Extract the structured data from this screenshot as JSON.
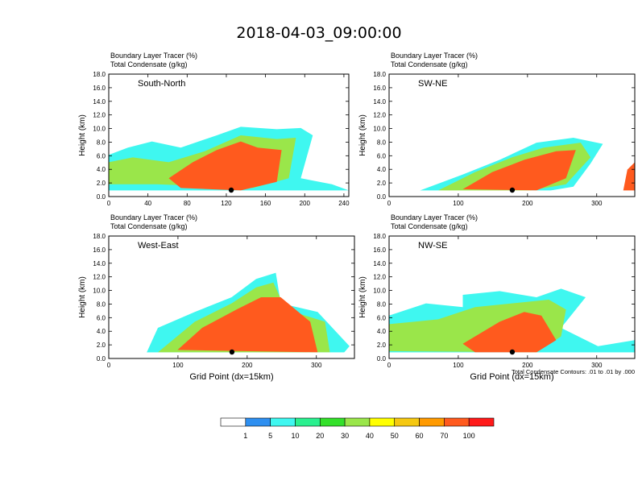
{
  "title": "2018-04-03_09:00:00",
  "footnote": "Total Condensate Contours: .01 to .01 by .000",
  "colorbar": {
    "colors": [
      "#ffffff",
      "#2e8ff0",
      "#3ff7f0",
      "#2af08f",
      "#33e02a",
      "#9ae64a",
      "#ffff00",
      "#f5c811",
      "#ff9a00",
      "#ff5a1e",
      "#ff1a1a"
    ],
    "labels": [
      "1",
      "5",
      "10",
      "20",
      "30",
      "40",
      "50",
      "60",
      "70",
      "100"
    ]
  },
  "chart_data": [
    {
      "type": "heatmap",
      "panel_label": "South-North",
      "subtitle1": "Boundary Layer Tracer   (%)",
      "subtitle2": "Total Condensate   (g/kg)",
      "xlabel": "",
      "ylabel": "Height (km)",
      "xlim": [
        0,
        245
      ],
      "ylim": [
        0,
        18
      ],
      "x_ticks": [
        "0",
        "40",
        "80",
        "120",
        "160",
        "200",
        "240"
      ],
      "x_tick_values": [
        0,
        40,
        80,
        120,
        160,
        200,
        240
      ],
      "y_ticks": [
        "0.0",
        "2.0",
        "4.0",
        "6.0",
        "8.0",
        "10.0",
        "12.0",
        "14.0",
        "16.0",
        "18.0"
      ],
      "marker_x": 125
    },
    {
      "type": "heatmap",
      "panel_label": "SW-NE",
      "subtitle1": "Boundary Layer Tracer   (%)",
      "subtitle2": "Total Condensate   (g/kg)",
      "xlabel": "",
      "ylabel": "Height (km)",
      "xlim": [
        0,
        355
      ],
      "ylim": [
        0,
        18
      ],
      "x_ticks": [
        "0",
        "100",
        "200",
        "300"
      ],
      "x_tick_values": [
        0,
        100,
        200,
        300
      ],
      "y_ticks": [
        "0.0",
        "2.0",
        "4.0",
        "6.0",
        "8.0",
        "10.0",
        "12.0",
        "14.0",
        "16.0",
        "18.0"
      ],
      "marker_x": 178
    },
    {
      "type": "heatmap",
      "panel_label": "West-East",
      "subtitle1": "Boundary Layer Tracer   (%)",
      "subtitle2": "Total Condensate   (g/kg)",
      "xlabel": "Grid Point (dx=15km)",
      "ylabel": "Height (km)",
      "xlim": [
        0,
        355
      ],
      "ylim": [
        0,
        18
      ],
      "x_ticks": [
        "0",
        "100",
        "200",
        "300"
      ],
      "x_tick_values": [
        0,
        100,
        200,
        300
      ],
      "y_ticks": [
        "0.0",
        "2.0",
        "4.0",
        "6.0",
        "8.0",
        "10.0",
        "12.0",
        "14.0",
        "16.0",
        "18.0"
      ],
      "marker_x": 178
    },
    {
      "type": "heatmap",
      "panel_label": "NW-SE",
      "subtitle1": "Boundary Layer Tracer   (%)",
      "subtitle2": "Total Condensate   (g/kg)",
      "xlabel": "Grid Point (dx=15km)",
      "ylabel": "Height (km)",
      "xlim": [
        0,
        355
      ],
      "ylim": [
        0,
        18
      ],
      "x_ticks": [
        "0",
        "100",
        "200",
        "300"
      ],
      "x_tick_values": [
        0,
        100,
        200,
        300
      ],
      "y_ticks": [
        "0.0",
        "2.0",
        "4.0",
        "6.0",
        "8.0",
        "10.0",
        "12.0",
        "14.0",
        "16.0",
        "18.0"
      ],
      "marker_x": 178
    }
  ]
}
